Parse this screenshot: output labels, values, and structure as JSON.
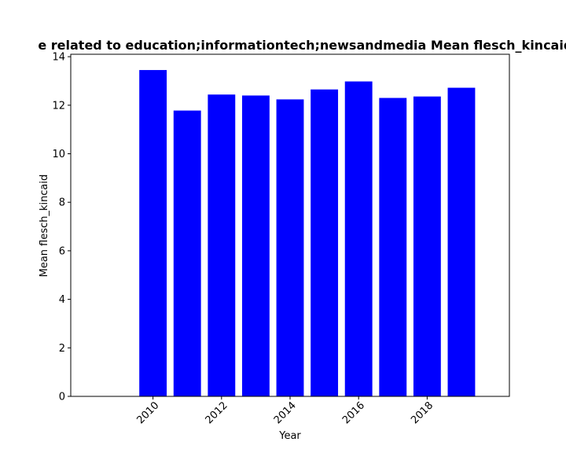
{
  "chart_data": {
    "type": "bar",
    "title": "e related to education;informationtech;newsandmedia Mean flesch_kincaid in pr",
    "xlabel": "Year",
    "ylabel": "Mean flesch_kincaid",
    "x": [
      2010,
      2011,
      2012,
      2013,
      2014,
      2015,
      2016,
      2017,
      2018,
      2019
    ],
    "values": [
      13.45,
      11.78,
      12.44,
      12.4,
      12.24,
      12.65,
      12.98,
      12.3,
      12.36,
      12.72
    ],
    "xlim": [
      2007.6,
      2020.4
    ],
    "ylim": [
      0,
      14.1
    ],
    "xticks": [
      2010,
      2012,
      2014,
      2016,
      2018
    ],
    "yticks": [
      0,
      2,
      4,
      6,
      8,
      10,
      12,
      14
    ],
    "bar_color": "#0000ff",
    "grid": false,
    "legend": "none"
  }
}
